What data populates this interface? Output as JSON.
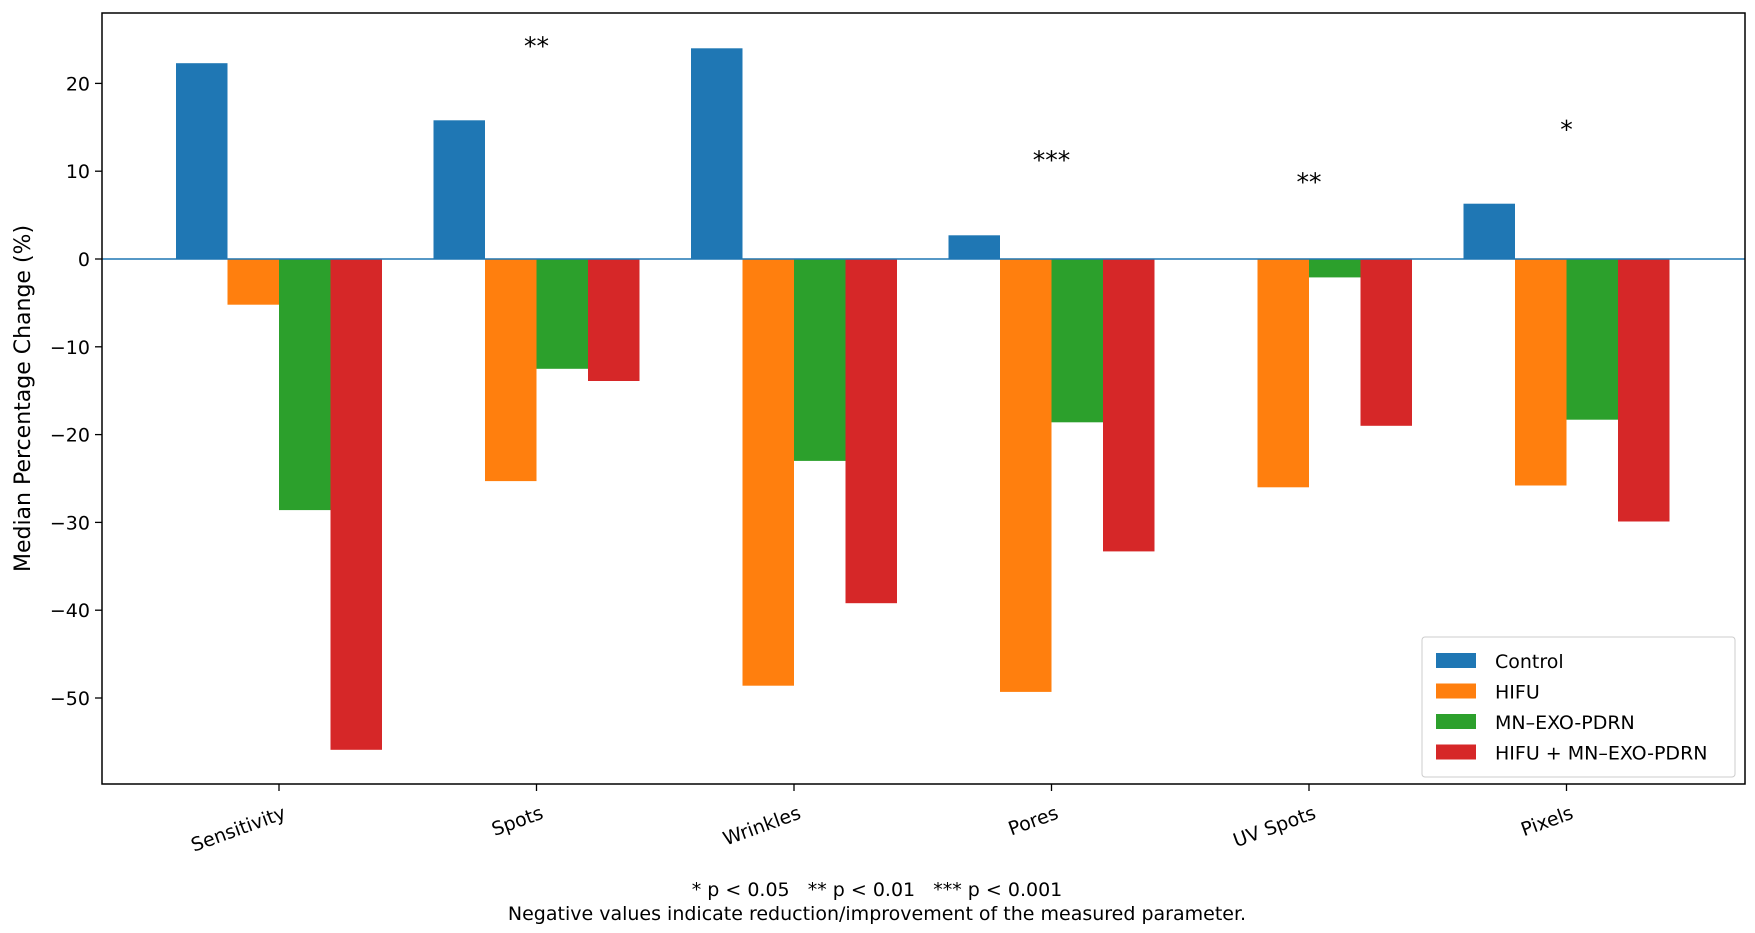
{
  "chart_data": {
    "type": "bar",
    "categories": [
      "Sensitivity",
      "Spots",
      "Wrinkles",
      "Pores",
      "UV Spots",
      "Pixels"
    ],
    "series": [
      {
        "name": "Control",
        "color": "#1f77b4",
        "values": [
          22.3,
          15.8,
          24.0,
          2.7,
          0.0,
          6.3
        ]
      },
      {
        "name": "HIFU",
        "color": "#ff7f0e",
        "values": [
          -5.2,
          -25.3,
          -48.6,
          -49.3,
          -26.0,
          -25.8
        ]
      },
      {
        "name": "MN–EXO-PDRN",
        "color": "#2ca02c",
        "values": [
          -28.6,
          -12.5,
          -23.0,
          -18.6,
          -2.1,
          -18.3
        ]
      },
      {
        "name": "HIFU + MN–EXO-PDRN",
        "color": "#d62728",
        "values": [
          -55.9,
          -13.9,
          -39.2,
          -33.3,
          -19.0,
          -29.9
        ]
      }
    ],
    "significance": [
      "",
      "**",
      "",
      "***",
      "**",
      "*"
    ],
    "significance_y": [
      null,
      25,
      null,
      12,
      9.5,
      15.5
    ],
    "xlabel": "",
    "ylabel": "Median Percentage Change (%)",
    "ylim": [
      -60,
      28
    ],
    "yticks": [
      -50,
      -40,
      -30,
      -20,
      -10,
      0,
      10,
      20
    ],
    "ytick_labels": [
      "−50",
      "−40",
      "−30",
      "−20",
      "−10",
      "0",
      "10",
      "20"
    ],
    "zero_line_color": "#1f77b4",
    "grid": false,
    "legend_position": "lower-right",
    "footnote_line1": "* p < 0.05   ** p < 0.01   *** p < 0.001",
    "footnote_line2": "Negative values indicate reduction/improvement of the measured parameter."
  }
}
